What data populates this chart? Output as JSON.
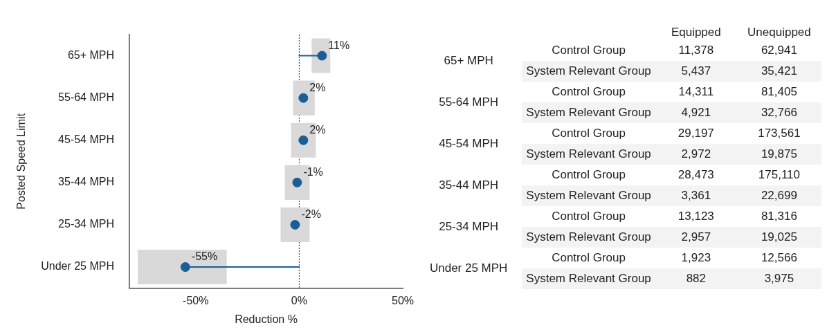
{
  "chart_data": [
    {
      "type": "lollipop",
      "orientation": "horizontal",
      "xlabel": "Reduction %",
      "ylabel": "Posted Speed Limit",
      "categories": [
        "65+ MPH",
        "55-64 MPH",
        "45-54 MPH",
        "35-44 MPH",
        "25-34 MPH",
        "Under 25 MPH"
      ],
      "marker": "circle",
      "series": [
        {
          "type": "bar",
          "color": "#d9d9d9",
          "base": [
            6,
            -3,
            -4,
            -7,
            -9,
            -78
          ],
          "values": [
            9,
            10.5,
            12,
            12,
            14,
            43
          ]
        },
        {
          "type": "lollipop",
          "color": "#1b5e97",
          "values": [
            11,
            2,
            2,
            -1,
            -2,
            -55
          ],
          "value_labels": [
            "11%",
            "2%",
            "2%",
            "-1%",
            "-2%",
            "-55%"
          ]
        }
      ],
      "xlim": [
        -82,
        50
      ],
      "xticks": [
        {
          "value": -50,
          "label": "-50%"
        },
        {
          "value": 0,
          "label": "0%"
        },
        {
          "value": 50,
          "label": "50%"
        }
      ],
      "ref_lines": [
        {
          "axis": "x",
          "value": 0,
          "line_style": "dotted"
        }
      ]
    },
    {
      "type": "other",
      "categories": [
        "Equipped",
        "Unequipped"
      ],
      "y_categories": [
        "Control Group",
        "System Relevant Group",
        "Control Group",
        "System Relevant Group",
        "Control Group",
        "System Relevant Group",
        "Control Group",
        "System Relevant Group",
        "Control Group",
        "System Relevant Group",
        "Control Group",
        "System Relevant Group"
      ],
      "y2_categories": [
        "65+ MPH",
        null,
        "55-64 MPH",
        null,
        "45-54 MPH",
        null,
        "35-44 MPH",
        null,
        "25-34 MPH",
        null,
        "Under 25 MPH",
        null
      ],
      "cell_labels": [
        [
          "11,378",
          "62,941"
        ],
        [
          "5,437",
          "35,421"
        ],
        [
          "14,311",
          "81,405"
        ],
        [
          "4,921",
          "32,766"
        ],
        [
          "29,197",
          "173,561"
        ],
        [
          "2,972",
          "19,875"
        ],
        [
          "28,473",
          "175,110"
        ],
        [
          "3,361",
          "22,699"
        ],
        [
          "13,123",
          "81,316"
        ],
        [
          "2,957",
          "19,025"
        ],
        [
          "1,923",
          "12,566"
        ],
        [
          "882",
          "3,975"
        ]
      ]
    }
  ]
}
